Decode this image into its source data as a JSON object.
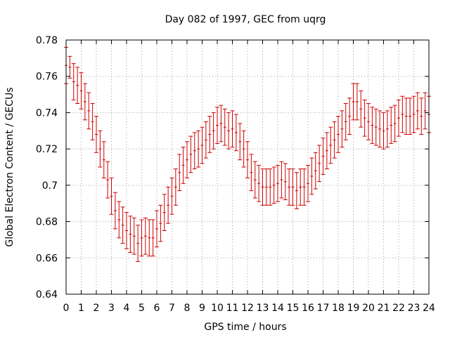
{
  "chart_data": {
    "type": "line",
    "title": "Day 082 of 1997, GEC from uqrg",
    "xlabel": "GPS time / hours",
    "ylabel": "Global Electron Content / GECUs",
    "xlim": [
      0,
      24
    ],
    "ylim": [
      0.64,
      0.78
    ],
    "grid": true,
    "series_color": "#cc0000",
    "x_ticks": [
      "0",
      "1",
      "2",
      "3",
      "4",
      "5",
      "6",
      "7",
      "8",
      "9",
      "10",
      "11",
      "12",
      "13",
      "14",
      "15",
      "16",
      "17",
      "18",
      "19",
      "20",
      "21",
      "22",
      "23",
      "24"
    ],
    "y_ticks": [
      "0.64",
      "0.66",
      "0.68",
      "0.7",
      "0.72",
      "0.74",
      "0.76",
      "0.78"
    ],
    "series": [
      {
        "name": "GEC",
        "x": [
          0,
          0.25,
          0.5,
          0.75,
          1,
          1.25,
          1.5,
          1.75,
          2,
          2.25,
          2.5,
          2.75,
          3,
          3.25,
          3.5,
          3.75,
          4,
          4.25,
          4.5,
          4.75,
          5,
          5.25,
          5.5,
          5.75,
          6,
          6.25,
          6.5,
          6.75,
          7,
          7.25,
          7.5,
          7.75,
          8,
          8.25,
          8.5,
          8.75,
          9,
          9.25,
          9.5,
          9.75,
          10,
          10.25,
          10.5,
          10.75,
          11,
          11.25,
          11.5,
          11.75,
          12,
          12.25,
          12.5,
          12.75,
          13,
          13.25,
          13.5,
          13.75,
          14,
          14.25,
          14.5,
          14.75,
          15,
          15.25,
          15.5,
          15.75,
          16,
          16.25,
          16.5,
          16.75,
          17,
          17.25,
          17.5,
          17.75,
          18,
          18.25,
          18.5,
          18.75,
          19,
          19.25,
          19.5,
          19.75,
          20,
          20.25,
          20.5,
          20.75,
          21,
          21.25,
          21.5,
          21.75,
          22,
          22.25,
          22.5,
          22.75,
          23,
          23.25,
          23.5,
          23.75,
          24
        ],
        "y": [
          0.766,
          0.765,
          0.757,
          0.755,
          0.752,
          0.746,
          0.741,
          0.735,
          0.728,
          0.72,
          0.714,
          0.703,
          0.694,
          0.686,
          0.681,
          0.678,
          0.675,
          0.673,
          0.672,
          0.668,
          0.671,
          0.672,
          0.671,
          0.671,
          0.676,
          0.679,
          0.685,
          0.689,
          0.694,
          0.699,
          0.707,
          0.711,
          0.714,
          0.717,
          0.719,
          0.72,
          0.722,
          0.725,
          0.728,
          0.73,
          0.733,
          0.734,
          0.732,
          0.73,
          0.731,
          0.729,
          0.724,
          0.72,
          0.714,
          0.707,
          0.703,
          0.701,
          0.699,
          0.699,
          0.699,
          0.7,
          0.701,
          0.703,
          0.702,
          0.699,
          0.699,
          0.697,
          0.699,
          0.699,
          0.701,
          0.705,
          0.708,
          0.712,
          0.716,
          0.719,
          0.722,
          0.725,
          0.728,
          0.731,
          0.735,
          0.738,
          0.746,
          0.746,
          0.742,
          0.737,
          0.735,
          0.733,
          0.732,
          0.731,
          0.73,
          0.731,
          0.733,
          0.734,
          0.737,
          0.739,
          0.738,
          0.738,
          0.739,
          0.741,
          0.738,
          0.741,
          0.739
        ],
        "err": [
          0.01,
          0.006,
          0.01,
          0.01,
          0.01,
          0.01,
          0.01,
          0.01,
          0.01,
          0.01,
          0.01,
          0.01,
          0.01,
          0.01,
          0.01,
          0.01,
          0.01,
          0.01,
          0.01,
          0.01,
          0.01,
          0.01,
          0.01,
          0.01,
          0.01,
          0.01,
          0.01,
          0.01,
          0.01,
          0.01,
          0.01,
          0.01,
          0.01,
          0.01,
          0.01,
          0.01,
          0.01,
          0.01,
          0.01,
          0.01,
          0.01,
          0.01,
          0.01,
          0.01,
          0.01,
          0.01,
          0.01,
          0.01,
          0.01,
          0.01,
          0.01,
          0.01,
          0.01,
          0.01,
          0.01,
          0.01,
          0.01,
          0.01,
          0.01,
          0.01,
          0.01,
          0.01,
          0.01,
          0.01,
          0.01,
          0.01,
          0.01,
          0.01,
          0.01,
          0.01,
          0.01,
          0.01,
          0.01,
          0.01,
          0.01,
          0.01,
          0.01,
          0.01,
          0.01,
          0.01,
          0.01,
          0.01,
          0.01,
          0.01,
          0.01,
          0.01,
          0.01,
          0.01,
          0.01,
          0.01,
          0.01,
          0.01,
          0.01,
          0.01,
          0.01,
          0.01,
          0.01
        ]
      }
    ]
  }
}
